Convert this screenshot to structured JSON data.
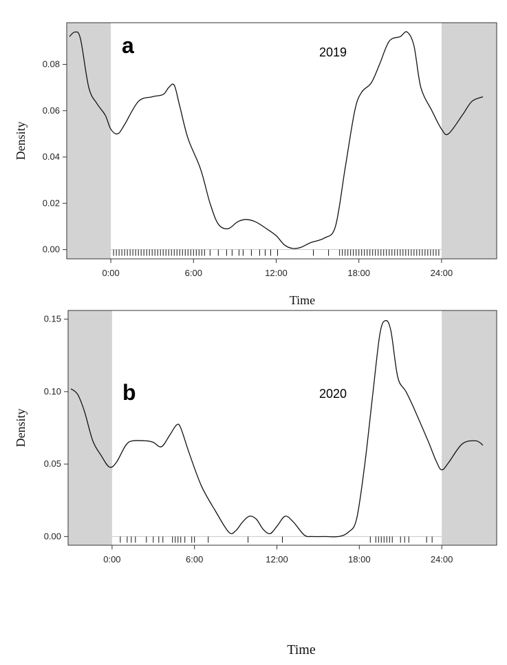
{
  "chart_data": [
    {
      "type": "line",
      "panel_label": "a",
      "annotation": "2019",
      "xlabel": "Time",
      "ylabel": "Density",
      "xlim": [
        -3.2,
        28.0
      ],
      "ylim": [
        -0.004,
        0.098
      ],
      "x_ticks": [
        0,
        6,
        12,
        18,
        24
      ],
      "x_tick_labels": [
        "0:00",
        "6:00",
        "12:00",
        "18:00",
        "24:00"
      ],
      "y_ticks": [
        0.0,
        0.02,
        0.04,
        0.06,
        0.08
      ],
      "y_tick_labels": [
        "0.00",
        "0.02",
        "0.04",
        "0.06",
        "0.08"
      ],
      "shaded_x_ranges": [
        [
          -3.2,
          0
        ],
        [
          24,
          28.0
        ]
      ],
      "series": [
        {
          "x": [
            -3.0,
            -2.6,
            -2.2,
            -1.6,
            -1.0,
            -0.4,
            0.0,
            0.5,
            1.0,
            2.0,
            3.0,
            3.8,
            4.2,
            4.6,
            5.0,
            5.6,
            6.5,
            7.2,
            7.8,
            8.5,
            9.2,
            9.8,
            10.5,
            11.3,
            12.0,
            12.6,
            13.2,
            13.8,
            14.5,
            15.5,
            16.3,
            17.0,
            17.7,
            18.2,
            18.9,
            19.5,
            20.2,
            21.0,
            21.5,
            22.0,
            22.5,
            23.3,
            24.0,
            24.5,
            25.5,
            26.2,
            27.0
          ],
          "y": [
            0.092,
            0.094,
            0.091,
            0.07,
            0.063,
            0.058,
            0.052,
            0.05,
            0.054,
            0.064,
            0.066,
            0.067,
            0.07,
            0.071,
            0.062,
            0.048,
            0.035,
            0.02,
            0.011,
            0.009,
            0.012,
            0.013,
            0.012,
            0.009,
            0.006,
            0.002,
            0.0005,
            0.001,
            0.003,
            0.005,
            0.01,
            0.035,
            0.06,
            0.068,
            0.072,
            0.08,
            0.09,
            0.092,
            0.094,
            0.088,
            0.07,
            0.06,
            0.052,
            0.05,
            0.058,
            0.064,
            0.066
          ]
        }
      ],
      "rug": [
        0.2,
        0.4,
        0.6,
        0.8,
        1.0,
        1.2,
        1.4,
        1.6,
        1.8,
        2.0,
        2.2,
        2.4,
        2.6,
        2.8,
        3.0,
        3.2,
        3.4,
        3.6,
        3.8,
        4.0,
        4.2,
        4.4,
        4.6,
        4.8,
        5.0,
        5.2,
        5.4,
        5.6,
        5.8,
        6.0,
        6.2,
        6.4,
        6.6,
        6.8,
        7.2,
        7.8,
        8.4,
        8.8,
        9.3,
        9.6,
        10.2,
        10.8,
        11.2,
        11.6,
        12.1,
        14.7,
        15.8,
        16.6,
        16.8,
        17.0,
        17.2,
        17.4,
        17.6,
        17.8,
        18.0,
        18.2,
        18.4,
        18.6,
        18.8,
        19.0,
        19.2,
        19.4,
        19.6,
        19.8,
        20.0,
        20.2,
        20.4,
        20.6,
        20.8,
        21.0,
        21.2,
        21.4,
        21.6,
        21.8,
        22.0,
        22.2,
        22.4,
        22.6,
        22.8,
        23.0,
        23.2,
        23.4,
        23.6,
        23.8
      ]
    },
    {
      "type": "line",
      "panel_label": "b",
      "annotation": "2020",
      "xlabel": "Time",
      "ylabel": "Density",
      "xlim": [
        -3.2,
        28.0
      ],
      "ylim": [
        -0.006,
        0.156
      ],
      "x_ticks": [
        0,
        6,
        12,
        18,
        24
      ],
      "x_tick_labels": [
        "0:00",
        "6:00",
        "12:00",
        "18:00",
        "24:00"
      ],
      "y_ticks": [
        0.0,
        0.05,
        0.1,
        0.15
      ],
      "y_tick_labels": [
        "0.00",
        "0.05",
        "0.10",
        "0.15"
      ],
      "shaded_x_ranges": [
        [
          -3.2,
          0
        ],
        [
          24,
          28.0
        ]
      ],
      "series": [
        {
          "x": [
            -3.0,
            -2.5,
            -2.0,
            -1.4,
            -0.8,
            -0.2,
            0.3,
            1.0,
            1.5,
            2.5,
            3.0,
            3.6,
            4.2,
            4.7,
            5.0,
            5.6,
            6.5,
            7.5,
            8.5,
            9.0,
            9.5,
            10.0,
            10.5,
            11.0,
            11.5,
            12.0,
            12.6,
            13.2,
            14.0,
            14.6,
            15.5,
            16.5,
            17.2,
            17.8,
            18.4,
            19.0,
            19.5,
            19.9,
            20.3,
            20.8,
            21.4,
            22.0,
            23.0,
            23.6,
            24.0,
            24.5,
            25.5,
            26.5,
            27.0
          ],
          "y": [
            0.102,
            0.098,
            0.086,
            0.066,
            0.056,
            0.048,
            0.051,
            0.063,
            0.066,
            0.066,
            0.065,
            0.062,
            0.07,
            0.077,
            0.075,
            0.058,
            0.035,
            0.018,
            0.003,
            0.004,
            0.01,
            0.014,
            0.012,
            0.005,
            0.002,
            0.007,
            0.014,
            0.01,
            0.001,
            0.0,
            0.0,
            0.0,
            0.003,
            0.012,
            0.05,
            0.1,
            0.14,
            0.149,
            0.142,
            0.11,
            0.1,
            0.088,
            0.066,
            0.052,
            0.046,
            0.051,
            0.064,
            0.066,
            0.063
          ]
        }
      ],
      "rug": [
        0.6,
        1.1,
        1.4,
        1.7,
        2.5,
        3.0,
        3.4,
        3.7,
        4.4,
        4.6,
        4.8,
        5.0,
        5.3,
        5.8,
        6.0,
        7.0,
        9.9,
        12.4,
        18.8,
        19.2,
        19.4,
        19.6,
        19.8,
        20.0,
        20.2,
        20.4,
        21.0,
        21.3,
        21.6,
        22.9,
        23.3
      ]
    }
  ],
  "footer_label": "Time"
}
